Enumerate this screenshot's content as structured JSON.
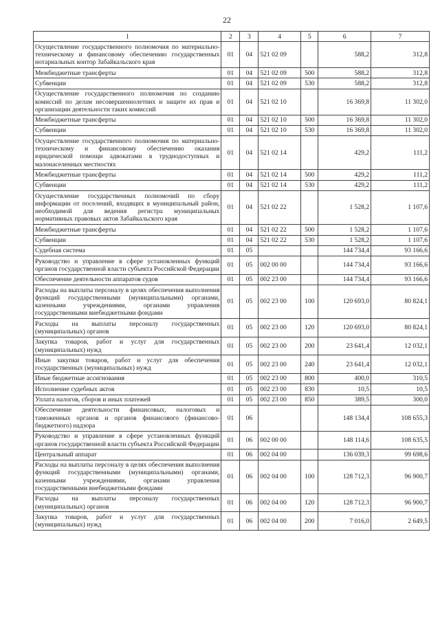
{
  "page_number": "22",
  "header": [
    "1",
    "2",
    "3",
    "4",
    "5",
    "6",
    "7"
  ],
  "rows": [
    [
      "Осуществление государственного полномочия по материально-техническому и финансовому обеспечению государственных нотариальных контор Забайкальского края",
      "01",
      "04",
      "521 02 09",
      "",
      "588,2",
      "312,8"
    ],
    [
      "Межбюджетные трансферты",
      "01",
      "04",
      "521 02 09",
      "500",
      "588,2",
      "312,8"
    ],
    [
      "Субвенции",
      "01",
      "04",
      "521 02 09",
      "530",
      "588,2",
      "312,8"
    ],
    [
      "Осуществление государственного полномочия по созданию комиссий по делам несовершеннолетних и защите их прав и организации деятельности таких комиссий",
      "01",
      "04",
      "521 02 10",
      "",
      "16 369,8",
      "11 302,0"
    ],
    [
      "Межбюджетные трансферты",
      "01",
      "04",
      "521 02 10",
      "500",
      "16 369,8",
      "11 302,0"
    ],
    [
      "Субвенции",
      "01",
      "04",
      "521 02 10",
      "530",
      "16 369,8",
      "11 302,0"
    ],
    [
      "Осуществление государственного полномочия по материально-техническому и финансовому обеспечению оказания юридической помощи адвокатами в труднодоступных и малонаселенных местностях",
      "01",
      "04",
      "521 02 14",
      "",
      "429,2",
      "111,2"
    ],
    [
      "Межбюджетные трансферты",
      "01",
      "04",
      "521 02 14",
      "500",
      "429,2",
      "111,2"
    ],
    [
      "Субвенции",
      "01",
      "04",
      "521 02 14",
      "530",
      "429,2",
      "111,2"
    ],
    [
      "Осуществление государственных полномочий по сбору информации от поселений, входящих в муниципальный район, необходимой для ведения регистра муниципальных нормативных правовых актов Забайкальского края",
      "01",
      "04",
      "521 02 22",
      "",
      "1 528,2",
      "1 107,6"
    ],
    [
      "Межбюджетные трансферты",
      "01",
      "04",
      "521 02 22",
      "500",
      "1 528,2",
      "1 107,6"
    ],
    [
      "Субвенции",
      "01",
      "04",
      "521 02 22",
      "530",
      "1 528,2",
      "1 107,6"
    ],
    [
      "Судебная система",
      "01",
      "05",
      "",
      "",
      "144 734,4",
      "93 166,6"
    ],
    [
      "Руководство и управление в сфере установленных функций органов государственной власти субъекта Российской Федерации",
      "01",
      "05",
      "002 00 00",
      "",
      "144 734,4",
      "93 166,6"
    ],
    [
      "Обеспечение деятельности аппаратов судов",
      "01",
      "05",
      "002 23 00",
      "",
      "144 734,4",
      "93 166,6"
    ],
    [
      "Расходы на выплаты персоналу в целях обеспечения выполнения функций государственными (муниципальными) органами, казенными учреждениями, органами управления государственными внебюджетными фондами",
      "01",
      "05",
      "002 23 00",
      "100",
      "120 693,0",
      "80 824,1"
    ],
    [
      "Расходы на выплаты персоналу государственных (муниципальных) органов",
      "01",
      "05",
      "002 23 00",
      "120",
      "120 693,0",
      "80 824,1"
    ],
    [
      "Закупка товаров, работ и услуг для государственных (муниципальных) нужд",
      "01",
      "05",
      "002 23 00",
      "200",
      "23 641,4",
      "12 032,1"
    ],
    [
      "Иные закупки товаров, работ и услуг для обеспечения государственных (муниципальных) нужд",
      "01",
      "05",
      "002 23 00",
      "240",
      "23 641,4",
      "12 032,1"
    ],
    [
      "Иные бюджетные ассигнования",
      "01",
      "05",
      "002 23 00",
      "800",
      "400,0",
      "310,5"
    ],
    [
      "Исполнение судебных актов",
      "01",
      "05",
      "002 23 00",
      "830",
      "10,5",
      "10,5"
    ],
    [
      "Уплата налогов, сборов и иных платежей",
      "01",
      "05",
      "002 23 00",
      "850",
      "389,5",
      "300,0"
    ],
    [
      "Обеспечение деятельности финансовых, налоговых и таможенных органов и органов финансового (финансово-бюджетного) надзора",
      "01",
      "06",
      "",
      "",
      "148 134,4",
      "108 655,3"
    ],
    [
      "Руководство и управление в сфере установленных функций органов государственной власти субъекта Российской Федерации",
      "01",
      "06",
      "002 00 00",
      "",
      "148 114,6",
      "108 635,5"
    ],
    [
      "Центральный аппарат",
      "01",
      "06",
      "002 04 00",
      "",
      "136 039,3",
      "99 698,6"
    ],
    [
      "Расходы на выплаты персоналу в целях обеспечения выполнения функций государственными (муниципальными) органами, казенными учреждениями, органами управления государственными внебюджетными фондами",
      "01",
      "06",
      "002 04 00",
      "100",
      "128 712,3",
      "96 900,7"
    ],
    [
      "Расходы на выплаты персоналу государственных (муниципальных) органов",
      "01",
      "06",
      "002 04 00",
      "120",
      "128 712,3",
      "96 900,7"
    ],
    [
      "Закупка товаров, работ и услуг для государственных (муниципальных) нужд",
      "01",
      "06",
      "002 04 00",
      "200",
      "7 016,0",
      "2 649,5"
    ]
  ]
}
